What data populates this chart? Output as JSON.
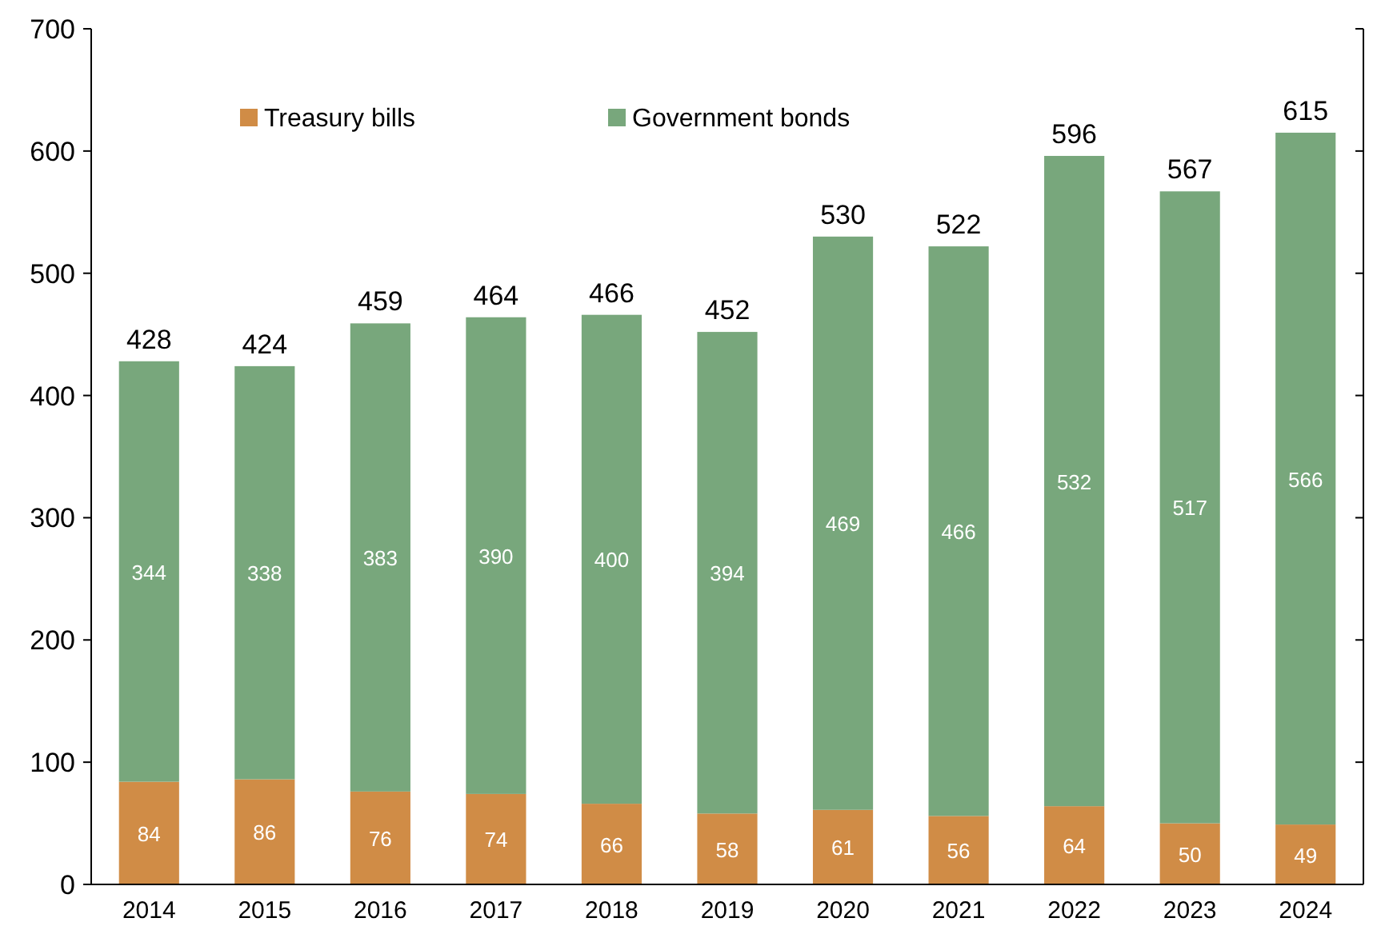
{
  "chart_data": {
    "type": "bar",
    "stacked": true,
    "categories": [
      "2014",
      "2015",
      "2016",
      "2017",
      "2018",
      "2019",
      "2020",
      "2021",
      "2022",
      "2023",
      "2024"
    ],
    "series": [
      {
        "name": "Treasury bills",
        "color": "#d08c46",
        "values": [
          84,
          86,
          76,
          74,
          66,
          58,
          61,
          56,
          64,
          50,
          49
        ]
      },
      {
        "name": "Government bonds",
        "color": "#78a77c",
        "values": [
          344,
          338,
          383,
          390,
          400,
          394,
          469,
          466,
          532,
          517,
          566
        ]
      }
    ],
    "ylim": [
      0,
      700
    ],
    "yticks": [
      0,
      100,
      200,
      300,
      400,
      500,
      600,
      700
    ],
    "data_labels": true,
    "totals": [
      "428",
      "424",
      "459",
      "464",
      "466",
      "452",
      "530",
      "522",
      "596",
      "567",
      "615"
    ],
    "legend": "top left",
    "grid": false
  }
}
